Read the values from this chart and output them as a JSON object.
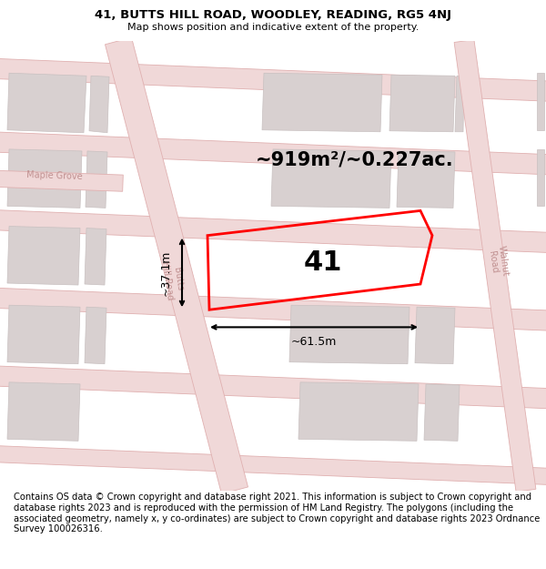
{
  "title": "41, BUTTS HILL ROAD, WOODLEY, READING, RG5 4NJ",
  "subtitle": "Map shows position and indicative extent of the property.",
  "footer": "Contains OS data © Crown copyright and database right 2021. This information is subject to Crown copyright and database rights 2023 and is reproduced with the permission of HM Land Registry. The polygons (including the associated geometry, namely x, y co-ordinates) are subject to Crown copyright and database rights 2023 Ordnance Survey 100026316.",
  "area_label": "~919m²/~0.227ac.",
  "width_label": "~61.5m",
  "height_label": "~37.1m",
  "number_label": "41",
  "map_bg": "#f7f0f0",
  "road_fill": "#f0d8d8",
  "road_edge": "#e0b0b0",
  "building_fill": "#d8d0d0",
  "building_edge": "#c8c0c0",
  "boundary_color": "#ff0000",
  "title_fontsize": 9.5,
  "subtitle_fontsize": 8.0,
  "footer_fontsize": 7.2,
  "area_fontsize": 15,
  "dim_fontsize": 9,
  "label_fontsize": 22,
  "road_label_fontsize": 7,
  "road_label_color": "#c09090"
}
